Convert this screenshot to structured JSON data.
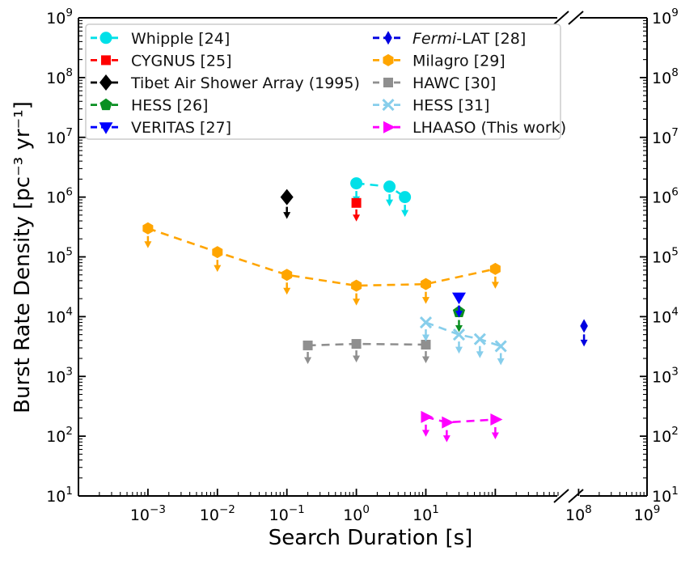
{
  "chart_data": {
    "type": "scatter",
    "title": "",
    "xlabel": "Search Duration [s]",
    "ylabel": "Burst Rate Density [pc⁻³ yr⁻¹]",
    "x_scale": "log (broken axis between ~10³ and ~10⁸)",
    "y_scale": "log",
    "grid": false,
    "upper_limits": "every point has a downward arrow (upper limit)",
    "x_axis": {
      "label": "Search Duration [s]",
      "tick_labels_left": [
        "10⁻³",
        "10⁻²",
        "10⁻¹",
        "10⁰",
        "10¹"
      ],
      "tick_exponents_left": [
        -3,
        -2,
        -1,
        0,
        1
      ],
      "tick_labels_right": [
        "10⁸",
        "10⁹"
      ],
      "tick_exponents_right": [
        8,
        9
      ],
      "break": true
    },
    "y_axis": {
      "label": "Burst Rate Density [pc⁻³ yr⁻¹]",
      "tick_labels": [
        "10¹",
        "10²",
        "10³",
        "10⁴",
        "10⁵",
        "10⁶",
        "10⁷",
        "10⁸",
        "10⁹"
      ],
      "tick_exponents": [
        1,
        2,
        3,
        4,
        5,
        6,
        7,
        8,
        9
      ],
      "ylim": [
        10,
        1000000000
      ],
      "mirrored_right_labels": true
    },
    "series": [
      {
        "name": "Whipple [24]",
        "color": "#00e0e8",
        "marker": "circle",
        "line": "dashed",
        "x": [
          1,
          3,
          5
        ],
        "y": [
          1700000,
          1500000,
          1000000
        ]
      },
      {
        "name": "CYGNUS [25]",
        "color": "#ff0000",
        "marker": "square",
        "line": "dashed",
        "x": [
          1
        ],
        "y": [
          800000
        ]
      },
      {
        "name": "Tibet Air Shower Array (1995)",
        "color": "#000000",
        "marker": "diamond",
        "line": "dashed",
        "x": [
          0.1
        ],
        "y": [
          1000000
        ]
      },
      {
        "name": "HESS [26]",
        "color": "#0a8f22",
        "marker": "pentagon",
        "line": "dashed",
        "x": [
          30
        ],
        "y": [
          12000
        ]
      },
      {
        "name": "VERITAS [27]",
        "color": "#0000ff",
        "marker": "triangle-down",
        "line": "dashed",
        "x": [
          30
        ],
        "y": [
          21000
        ]
      },
      {
        "name": "Fermi-LAT [28]",
        "name_parts": [
          {
            "text": "Fermi",
            "italic": true
          },
          {
            "text": "-LAT [28]",
            "italic": false
          }
        ],
        "color": "#0000e0",
        "marker": "thin-diamond",
        "line": "dashed",
        "x": [
          120000000
        ],
        "y": [
          7000
        ]
      },
      {
        "name": "Milagro [29]",
        "color": "#ffa500",
        "marker": "hexagon",
        "line": "dashed",
        "x": [
          0.001,
          0.01,
          0.1,
          1,
          10,
          100
        ],
        "y": [
          300000,
          120000,
          50000,
          33000,
          35000,
          63000
        ]
      },
      {
        "name": "HAWC [30]",
        "color": "#8f8f8f",
        "marker": "square",
        "line": "dashed",
        "x": [
          0.2,
          1,
          10
        ],
        "y": [
          3300,
          3500,
          3400
        ]
      },
      {
        "name": "HESS [31]",
        "color": "#87ceeb",
        "marker": "x",
        "line": "dashed",
        "x": [
          10,
          30,
          60,
          120
        ],
        "y": [
          8000,
          5000,
          4200,
          3200
        ]
      },
      {
        "name": "LHAASO (This work)",
        "color": "#ff00ff",
        "marker": "triangle-right",
        "line": "dashed",
        "x": [
          10,
          20,
          100
        ],
        "y": [
          210,
          170,
          190
        ]
      }
    ],
    "legend": {
      "position": "upper left",
      "columns": 2,
      "column1_indices": [
        0,
        1,
        2,
        3,
        4
      ],
      "column2_indices": [
        5,
        6,
        7,
        8,
        9
      ]
    }
  }
}
